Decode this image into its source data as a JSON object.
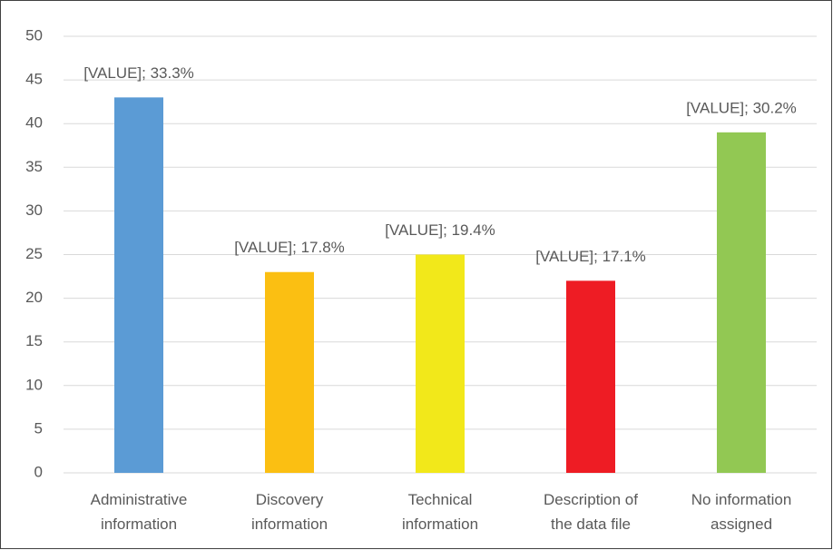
{
  "chart_data": {
    "type": "bar",
    "categories": [
      "Administrative\ninformation",
      "Discovery\ninformation",
      "Technical\ninformation",
      "Description of\nthe data file",
      "No information\nassigned"
    ],
    "values": [
      43,
      23,
      25,
      22,
      39
    ],
    "annotations": [
      "[VALUE]; 33.3%",
      "[VALUE]; 17.8%",
      "[VALUE]; 19.4%",
      "[VALUE]; 17.1%",
      "[VALUE]; 30.2%"
    ],
    "colors": [
      "#5b9bd5",
      "#fbbf12",
      "#f2e81a",
      "#ee1c24",
      "#92c853"
    ],
    "ylim": [
      0,
      50
    ],
    "yticks": [
      0,
      5,
      10,
      15,
      20,
      25,
      30,
      35,
      40,
      45,
      50
    ],
    "grid": true
  }
}
